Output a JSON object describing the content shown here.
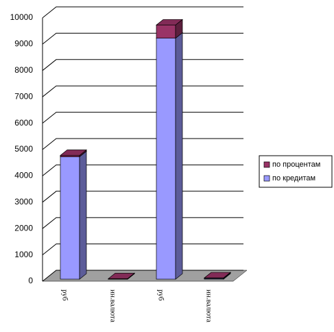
{
  "chart_data": {
    "type": "bar3d_stacked",
    "categories": [
      "руб",
      "ин.валюта",
      "руб",
      "ин.валюта"
    ],
    "series": [
      {
        "name": "по кредитам",
        "color": "#9999ff",
        "values": [
          4650,
          0,
          9150,
          30
        ]
      },
      {
        "name": "по процентам",
        "color": "#993366",
        "values": [
          50,
          20,
          500,
          20
        ]
      }
    ],
    "ylim": [
      0,
      10000
    ],
    "yticks": [
      0,
      1000,
      2000,
      3000,
      4000,
      5000,
      6000,
      7000,
      8000,
      9000,
      10000
    ],
    "grid": true,
    "legend": "right"
  }
}
